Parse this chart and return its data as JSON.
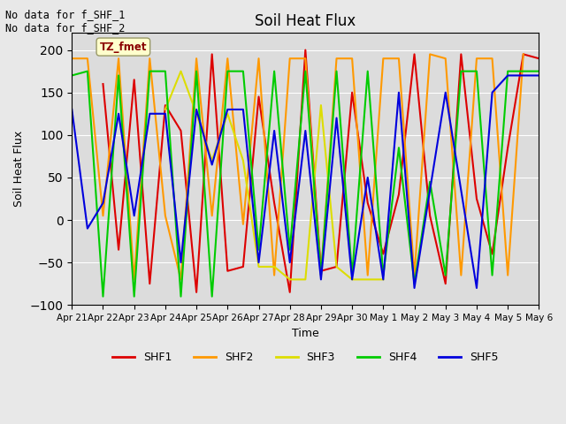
{
  "title": "Soil Heat Flux",
  "ylabel": "Soil Heat Flux",
  "xlabel": "Time",
  "ylim": [
    -100,
    220
  ],
  "yticks": [
    -100,
    -50,
    0,
    50,
    100,
    150,
    200
  ],
  "annotation_text": "No data for f_SHF_1\nNo data for f_SHF_2",
  "legend_label": "TZ_fmet",
  "series_colors": {
    "SHF1": "#dd0000",
    "SHF2": "#ff9900",
    "SHF3": "#dddd00",
    "SHF4": "#00cc00",
    "SHF5": "#0000dd"
  },
  "x_tick_labels": [
    "Apr 21",
    "Apr 22",
    "Apr 23",
    "Apr 24",
    "Apr 25",
    "Apr 26",
    "Apr 27",
    "Apr 28",
    "Apr 29",
    "Apr 30",
    "May 1",
    "May 2",
    "May 3",
    "May 4",
    "May 5",
    "May 6"
  ],
  "n_ticks": 16,
  "background_color": "#e8e8e8",
  "plot_bg_color": "#dcdcdc",
  "SHF1_x": [
    0.5,
    1.0,
    1.5,
    2.0,
    2.5,
    3.0,
    3.5,
    4.0,
    4.5,
    5.0,
    5.5,
    6.0,
    6.5,
    7.0,
    7.5,
    8.0,
    8.5,
    9.0,
    9.5,
    10.0,
    10.5,
    11.0,
    11.5,
    12.0,
    12.5,
    13.0,
    13.5,
    14.0,
    14.5,
    15.0
  ],
  "SHF1_y": [
    null,
    160,
    -35,
    165,
    -75,
    135,
    105,
    -85,
    195,
    -60,
    -55,
    145,
    20,
    -85,
    200,
    -60,
    -55,
    150,
    20,
    -40,
    30,
    195,
    5,
    -75,
    195,
    25,
    -40,
    85,
    195,
    190
  ],
  "SHF2_x": [
    0.0,
    0.5,
    1.0,
    1.5,
    2.0,
    2.5,
    3.0,
    3.5,
    4.0,
    4.5,
    5.0,
    5.5,
    6.0,
    6.5,
    7.0,
    7.5,
    8.0,
    8.5,
    9.0,
    9.5,
    10.0,
    10.5,
    11.0,
    11.5,
    12.0,
    12.5,
    13.0,
    13.5,
    14.0,
    14.5
  ],
  "SHF2_y": [
    190,
    190,
    5,
    190,
    -70,
    190,
    5,
    -70,
    190,
    5,
    190,
    -5,
    190,
    -65,
    190,
    190,
    -65,
    190,
    190,
    -65,
    190,
    190,
    -65,
    195,
    190,
    -65,
    190,
    190,
    -65,
    195
  ],
  "SHF3_x": [
    3.0,
    3.5,
    4.0,
    4.5,
    5.0,
    5.5,
    6.0,
    6.5,
    7.0,
    7.5,
    8.0,
    8.5,
    9.0,
    9.5,
    10.0
  ],
  "SHF3_y": [
    130,
    175,
    125,
    70,
    125,
    70,
    -55,
    -55,
    -70,
    -70,
    135,
    -55,
    -70,
    -70,
    -70
  ],
  "SHF4_x": [
    0.0,
    0.5,
    1.0,
    1.5,
    2.0,
    2.5,
    3.0,
    3.5,
    4.0,
    4.5,
    5.0,
    5.5,
    6.0,
    6.5,
    7.0,
    7.5,
    8.0,
    8.5,
    9.0,
    9.5,
    10.0,
    10.5,
    11.0,
    11.5,
    12.0,
    12.5,
    13.0,
    13.5,
    14.0,
    14.5,
    15.0
  ],
  "SHF4_y": [
    170,
    175,
    -90,
    170,
    -90,
    175,
    175,
    -90,
    175,
    -90,
    175,
    175,
    -35,
    175,
    -35,
    175,
    -65,
    175,
    -65,
    175,
    -65,
    85,
    -75,
    45,
    -65,
    175,
    175,
    -65,
    175,
    175,
    175
  ],
  "SHF5_x": [
    0.0,
    0.5,
    1.0,
    1.5,
    2.0,
    2.5,
    3.0,
    3.5,
    4.0,
    4.5,
    5.0,
    5.5,
    6.0,
    6.5,
    7.0,
    7.5,
    8.0,
    8.5,
    9.0,
    9.5,
    10.0,
    10.5,
    11.0,
    11.5,
    12.0,
    12.5,
    13.0,
    13.5,
    14.0,
    14.5,
    15.0
  ],
  "SHF5_y": [
    130,
    -10,
    20,
    125,
    5,
    125,
    125,
    -50,
    130,
    65,
    130,
    130,
    -50,
    105,
    -50,
    105,
    -70,
    120,
    -70,
    50,
    -70,
    150,
    -80,
    35,
    150,
    35,
    -80,
    150,
    170,
    170,
    170
  ]
}
